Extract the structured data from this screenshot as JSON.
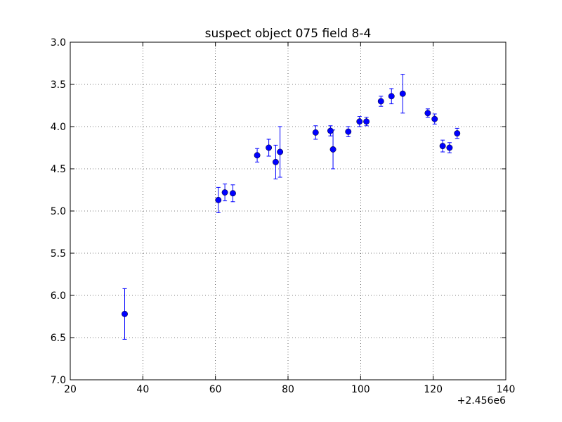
{
  "chart_data": {
    "type": "scatter",
    "title": "suspect object 075 field 8-4",
    "xlabel": "",
    "ylabel": "",
    "x_offset_label": "+2.456e6",
    "xlim": [
      20,
      140
    ],
    "ylim": [
      3.0,
      7.0
    ],
    "y_inverted": true,
    "grid": true,
    "x_ticks": [
      20,
      40,
      60,
      80,
      100,
      120,
      140
    ],
    "x_tick_labels": [
      "20",
      "40",
      "60",
      "80",
      "100",
      "120",
      "140"
    ],
    "y_ticks": [
      3.0,
      3.5,
      4.0,
      4.5,
      5.0,
      5.5,
      6.0,
      6.5,
      7.0
    ],
    "y_tick_labels": [
      "3.0",
      "3.5",
      "4.0",
      "4.5",
      "5.0",
      "5.5",
      "6.0",
      "6.5",
      "7.0"
    ],
    "color": "#0000ff",
    "points": [
      {
        "x": 35.0,
        "y": 6.22,
        "err": 0.3
      },
      {
        "x": 60.8,
        "y": 4.87,
        "err": 0.15
      },
      {
        "x": 62.6,
        "y": 4.78,
        "err": 0.1
      },
      {
        "x": 64.8,
        "y": 4.79,
        "err": 0.1
      },
      {
        "x": 71.5,
        "y": 4.34,
        "err": 0.08
      },
      {
        "x": 74.7,
        "y": 4.25,
        "err": 0.1
      },
      {
        "x": 76.6,
        "y": 4.42,
        "err": 0.2
      },
      {
        "x": 77.8,
        "y": 4.3,
        "err": 0.3
      },
      {
        "x": 87.6,
        "y": 4.07,
        "err": 0.08
      },
      {
        "x": 91.7,
        "y": 4.05,
        "err": 0.06
      },
      {
        "x": 92.4,
        "y": 4.27,
        "err": 0.23
      },
      {
        "x": 96.6,
        "y": 4.06,
        "err": 0.06
      },
      {
        "x": 99.7,
        "y": 3.94,
        "err": 0.06
      },
      {
        "x": 101.6,
        "y": 3.94,
        "err": 0.05
      },
      {
        "x": 105.6,
        "y": 3.7,
        "err": 0.06
      },
      {
        "x": 108.5,
        "y": 3.64,
        "err": 0.09
      },
      {
        "x": 111.6,
        "y": 3.61,
        "err": 0.23
      },
      {
        "x": 118.5,
        "y": 3.84,
        "err": 0.05
      },
      {
        "x": 120.4,
        "y": 3.91,
        "err": 0.06
      },
      {
        "x": 122.6,
        "y": 4.23,
        "err": 0.07
      },
      {
        "x": 124.5,
        "y": 4.25,
        "err": 0.06
      },
      {
        "x": 126.6,
        "y": 4.08,
        "err": 0.06
      }
    ]
  }
}
